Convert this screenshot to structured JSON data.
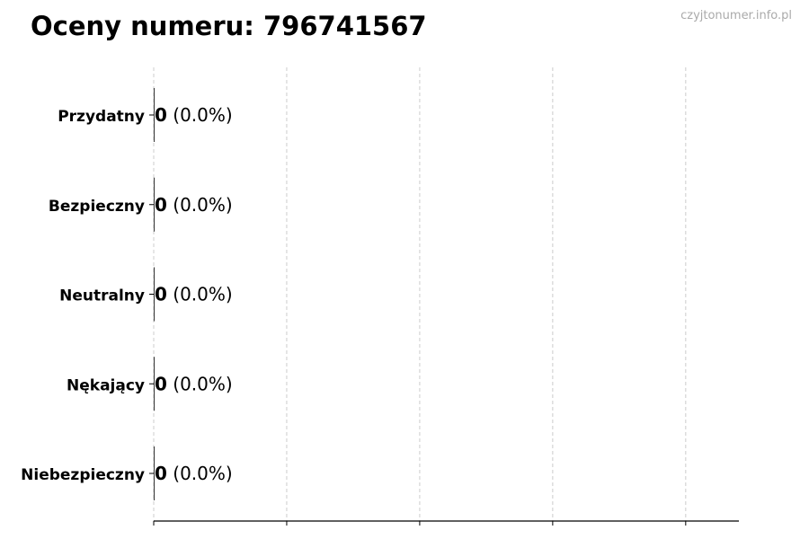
{
  "title": "Oceny numeru: 796741567",
  "watermark": "czyjtonumer.info.pl",
  "chart_data": {
    "type": "bar",
    "orientation": "horizontal",
    "title": "Oceny numeru: 796741567",
    "categories": [
      "Przydatny",
      "Bezpieczny",
      "Neutralny",
      "Nękający",
      "Niebezpieczny"
    ],
    "values": [
      0,
      0,
      0,
      0,
      0
    ],
    "data_labels": [
      "0 (0.0%)",
      "0 (0.0%)",
      "0 (0.0%)",
      "0 (0.0%)",
      "0 (0.0%)"
    ],
    "counts": [
      "0",
      "0",
      "0",
      "0",
      "0"
    ],
    "percents": [
      "(0.0%)",
      "(0.0%)",
      "(0.0%)",
      "(0.0%)",
      "(0.0%)"
    ],
    "xlim": [
      0,
      4.4
    ],
    "xticks": [
      0,
      1,
      2,
      3,
      4
    ],
    "xtick_labels_shown": false,
    "grid": "x dashed",
    "xlabel": "",
    "ylabel": "",
    "colors": {
      "bar": "#333333",
      "grid": "#cccccc",
      "axis": "#000000"
    }
  }
}
